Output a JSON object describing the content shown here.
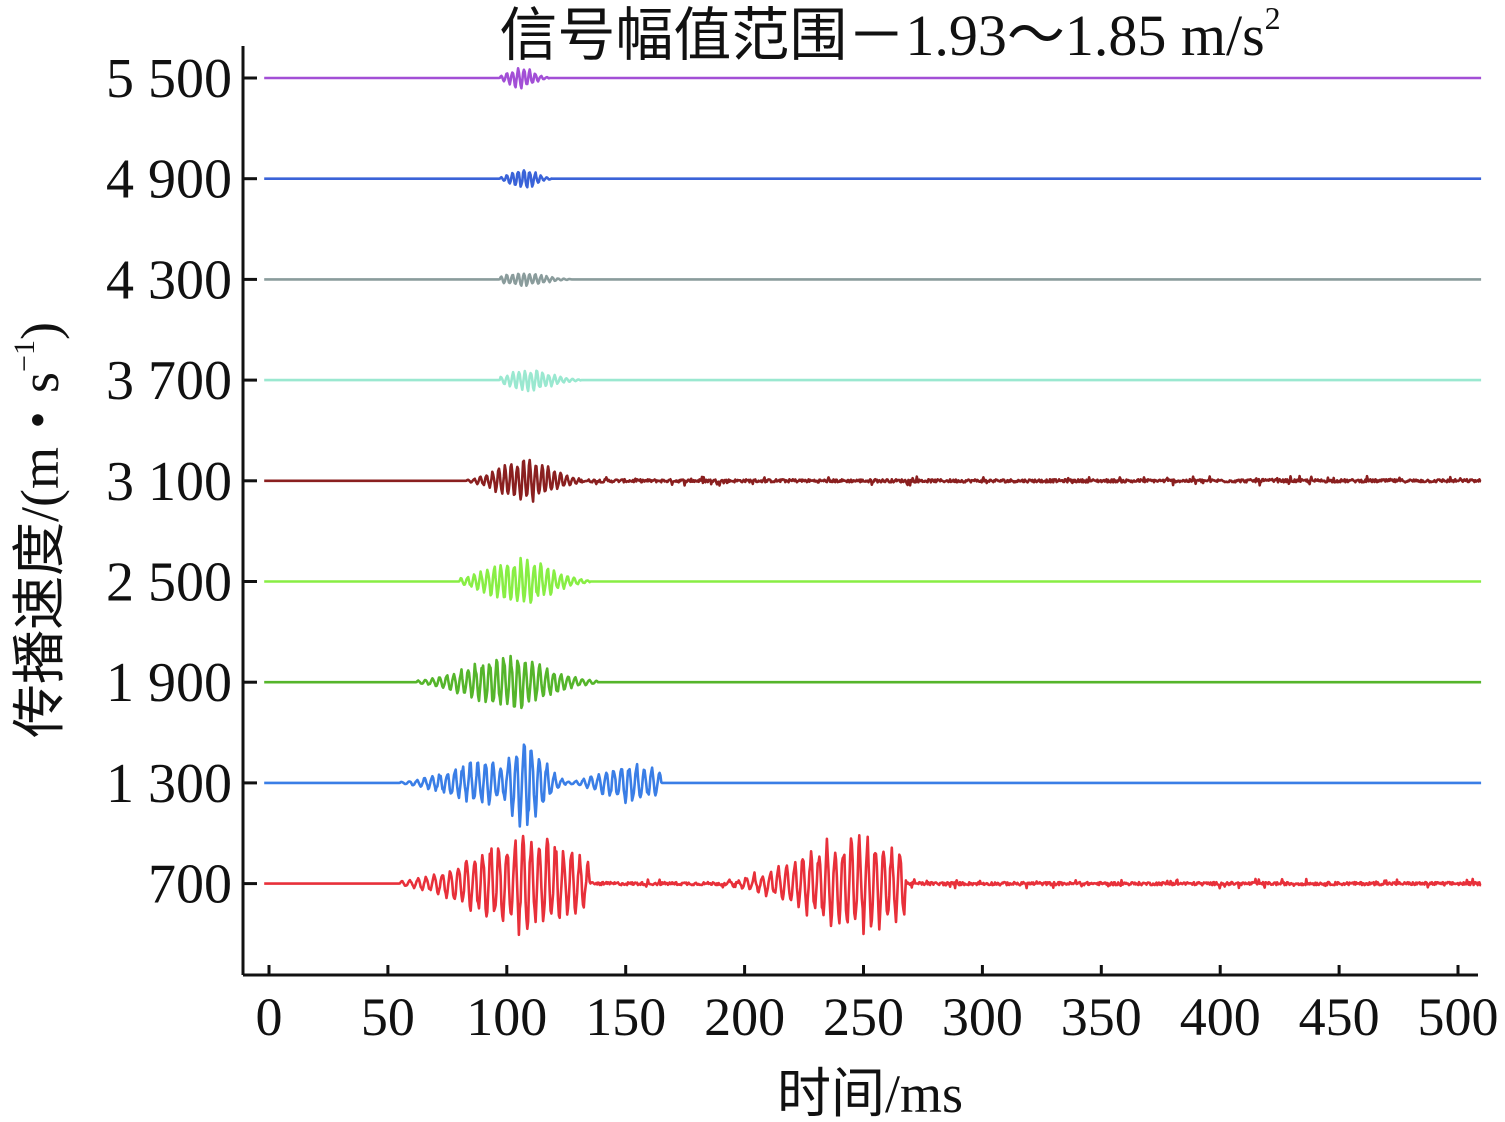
{
  "chart_data": {
    "type": "line",
    "title": "信号幅值范围－1.93～1.85 m/s²",
    "title_main": "信号幅值范围－1.93～1.85 m/s",
    "title_sup": "2",
    "xlabel": "时间/ms",
    "ylabel": "传播速度/(m・s⁻¹)",
    "ylabel_main": "传播速度/(m・s",
    "ylabel_sup": "−1",
    "ylabel_close": ")",
    "xlim": [
      0,
      510
    ],
    "x_ticks": [
      0,
      50,
      100,
      150,
      200,
      250,
      300,
      350,
      400,
      450,
      500
    ],
    "x_tick_labels": [
      "0",
      "50",
      "100",
      "150",
      "200",
      "250",
      "300",
      "350",
      "400",
      "450",
      "500"
    ],
    "y_ticks": [
      5500,
      4900,
      4300,
      3700,
      3100,
      2500,
      1900,
      1300,
      700
    ],
    "y_tick_labels": [
      "5 500",
      "4 900",
      "4 300",
      "3 700",
      "3 100",
      "2 500",
      "1 900",
      "1 300",
      "700"
    ],
    "grid": false,
    "series": [
      {
        "speed": 5500,
        "color": "#a24fd6",
        "bursts": [
          {
            "start": 97,
            "end": 118,
            "center": 106,
            "amp": 0.22,
            "period": 2.4
          }
        ]
      },
      {
        "speed": 4900,
        "color": "#3a63d8",
        "bursts": [
          {
            "start": 97,
            "end": 119,
            "center": 107,
            "amp": 0.22,
            "period": 2.4
          }
        ]
      },
      {
        "speed": 4300,
        "color": "#8a9c9c",
        "bursts": [
          {
            "start": 97,
            "end": 127,
            "center": 107,
            "amp": 0.14,
            "period": 2.4
          }
        ]
      },
      {
        "speed": 3700,
        "color": "#9ae8d0",
        "bursts": [
          {
            "start": 97,
            "end": 131,
            "center": 110,
            "amp": 0.22,
            "period": 2.5
          }
        ]
      },
      {
        "speed": 3100,
        "color": "#8a1f1f",
        "bursts": [
          {
            "start": 83,
            "end": 131,
            "center": 108,
            "amp": 0.48,
            "period": 2.6
          }
        ],
        "noise": 0.03
      },
      {
        "speed": 2500,
        "color": "#88ee44",
        "bursts": [
          {
            "start": 80,
            "end": 135,
            "center": 105,
            "amp": 0.48,
            "period": 2.8
          }
        ]
      },
      {
        "speed": 1900,
        "color": "#55b52b",
        "bursts": [
          {
            "start": 62,
            "end": 138,
            "center": 100,
            "amp": 0.58,
            "period": 3.0
          }
        ]
      },
      {
        "speed": 1300,
        "color": "#3a7ee6",
        "bursts": [
          {
            "start": 55,
            "end": 100,
            "center": 90,
            "amp": 0.45,
            "period": 3.2
          },
          {
            "start": 100,
            "end": 125,
            "center": 108,
            "amp": 0.95,
            "period": 3.2
          },
          {
            "start": 125,
            "end": 165,
            "center": 152,
            "amp": 0.42,
            "period": 3.2
          }
        ]
      },
      {
        "speed": 700,
        "color": "#e8303a",
        "bursts": [
          {
            "start": 55,
            "end": 135,
            "center": 108,
            "amp": 1.0,
            "period": 3.4
          },
          {
            "start": 193,
            "end": 268,
            "center": 247,
            "amp": 1.0,
            "period": 3.4
          }
        ],
        "noise": 0.03
      }
    ]
  }
}
